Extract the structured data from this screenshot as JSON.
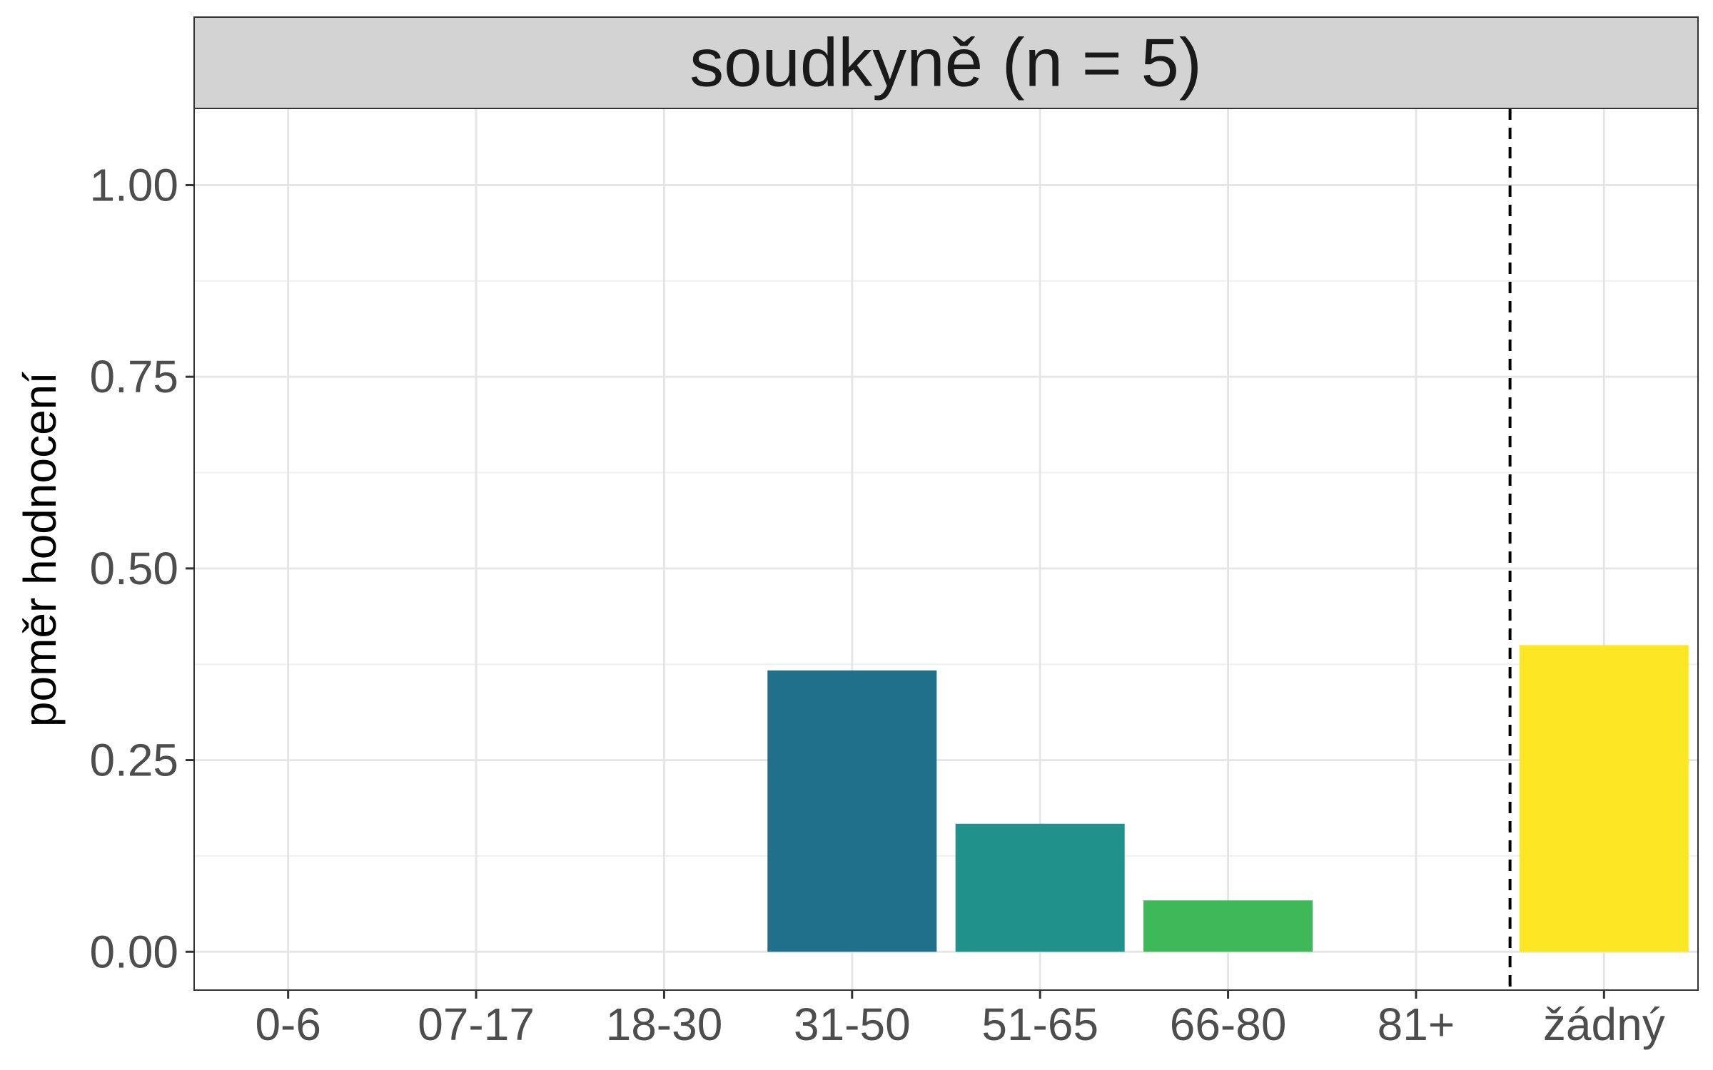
{
  "chart_data": {
    "type": "bar",
    "title": "soudkyně (n = 5)",
    "xlabel": "",
    "ylabel": "poměr hodnocení",
    "categories": [
      "0-6",
      "07-17",
      "18-30",
      "31-50",
      "51-65",
      "66-80",
      "81+",
      "žádný"
    ],
    "values": [
      0,
      0,
      0,
      0.367,
      0.167,
      0.067,
      0,
      0.4
    ],
    "colors": [
      "#440154",
      "#46327e",
      "#365c8d",
      "#21708b",
      "#21918c",
      "#3fb85a",
      "#9ed93a",
      "#fde725"
    ],
    "yticks": [
      "0.00",
      "0.25",
      "0.50",
      "0.75",
      "1.00"
    ],
    "ylim": [
      -0.05,
      1.1
    ],
    "grid": true,
    "legend": "none",
    "reference_line": {
      "style": "dashed",
      "between": [
        "81+",
        "žádný"
      ]
    }
  }
}
